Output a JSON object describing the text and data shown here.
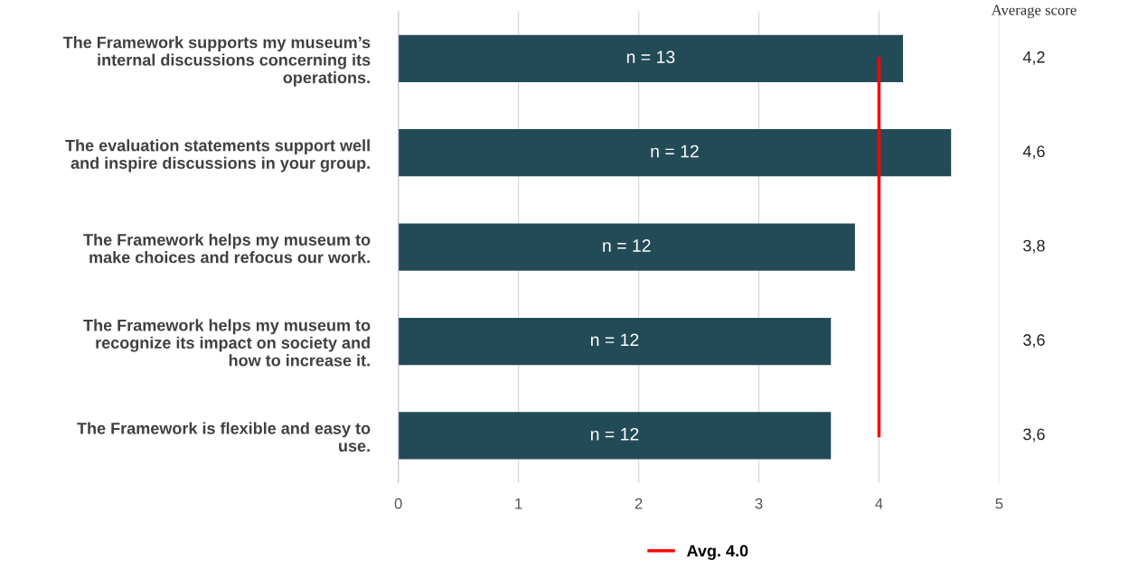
{
  "chart_data": {
    "type": "bar",
    "orientation": "horizontal",
    "categories": [
      "The Framework supports my museum’s\ninternal discussions concerning its\noperations.",
      "The evaluation statements support well\nand inspire discussions in your group.",
      "The Framework helps my museum to\nmake choices and refocus our work.",
      "The Framework helps my museum to\nrecognize its impact on society and\nhow to increase it.",
      "The Framework is flexible and easy to\nuse."
    ],
    "values": [
      4.2,
      4.6,
      3.8,
      3.6,
      3.6
    ],
    "color": "#234a57",
    "value_labels": [
      "4,2",
      "4,6",
      "3,8",
      "3,6",
      "3,6"
    ],
    "xlim": [
      0,
      5
    ],
    "xticks": [
      0,
      1,
      2,
      3,
      4,
      5
    ],
    "grid": "x",
    "ref_lines": [
      {
        "axis": "x",
        "value": 4,
        "label": "Avg. 4.0",
        "color": "#ff0000"
      }
    ],
    "legend": "bottom",
    "annotations": [
      "Average score",
      "n = 13",
      "n = 12",
      "n = 12",
      "n = 12",
      "n = 12"
    ]
  }
}
